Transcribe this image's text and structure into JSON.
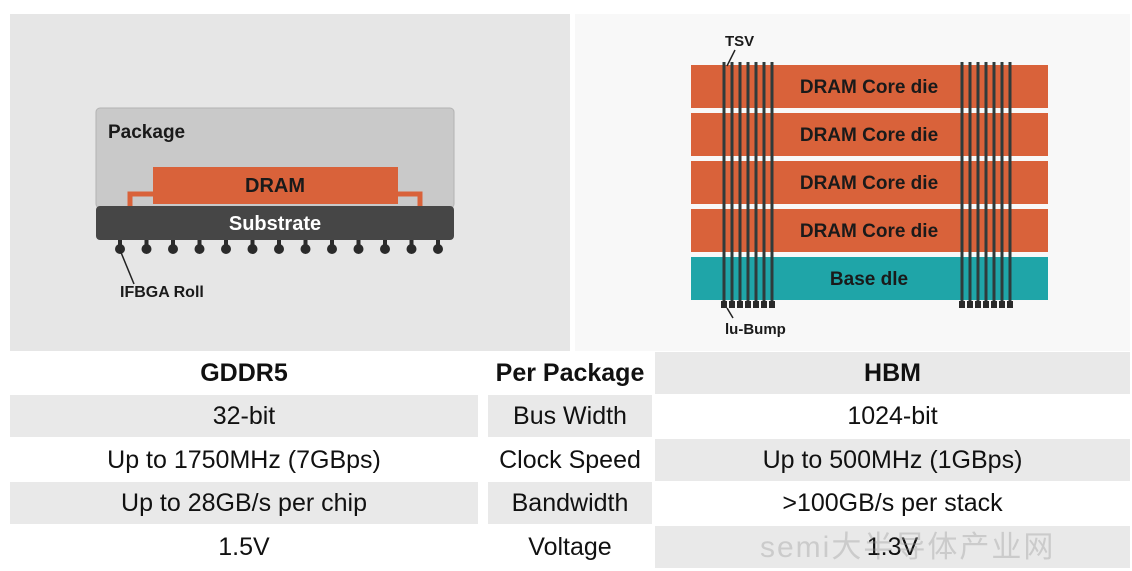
{
  "gddr5_diagram": {
    "package_label": "Package",
    "dram_label": "DRAM",
    "substrate_label": "Substrate",
    "ball_label": "IFBGA Roll"
  },
  "hbm_diagram": {
    "tsv_label": "TSV",
    "core_die_labels": [
      "DRAM Core die",
      "DRAM Core die",
      "DRAM Core die",
      "DRAM Core die"
    ],
    "base_die_label": "Base dle",
    "bump_label": "lu-Bump"
  },
  "table": {
    "header": {
      "left": "GDDR5",
      "mid": "Per Package",
      "right": "HBM"
    },
    "rows": [
      {
        "left": "32-bit",
        "mid": "Bus Width",
        "right": "1024-bit"
      },
      {
        "left": "Up to 1750MHz (7GBps)",
        "mid": "Clock Speed",
        "right": "Up to 500MHz (1GBps)"
      },
      {
        "left": "Up to 28GB/s per chip",
        "mid": "Bandwidth",
        "right": ">100GB/s per stack"
      },
      {
        "left": "1.5V",
        "mid": "Voltage",
        "right": "1.3V"
      }
    ]
  },
  "colors": {
    "dram_orange": "#d9623a",
    "base_die_teal": "#1fa5a8",
    "substrate_dark": "#464646",
    "package_gray": "#c9c9c9"
  },
  "watermark": "semi大半导体产业网"
}
